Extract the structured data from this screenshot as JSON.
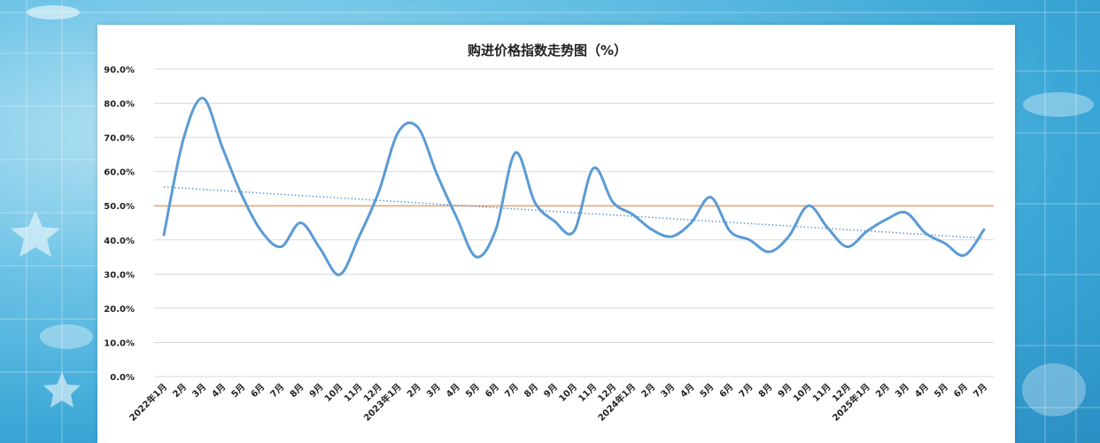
{
  "chart_data": {
    "type": "line",
    "title": "购进价格指数走势图（%）",
    "ylim": [
      0,
      90
    ],
    "yticks": [
      "0.0%",
      "10.0%",
      "20.0%",
      "30.0%",
      "40.0%",
      "50.0%",
      "60.0%",
      "70.0%",
      "80.0%",
      "90.0%"
    ],
    "grid": true,
    "categories": [
      "2022年1月",
      "2月",
      "3月",
      "4月",
      "5月",
      "6月",
      "7月",
      "8月",
      "9月",
      "10月",
      "11月",
      "12月",
      "2023年1月",
      "2月",
      "3月",
      "4月",
      "5月",
      "6月",
      "7月",
      "8月",
      "9月",
      "10月",
      "11月",
      "12月",
      "2024年1月",
      "2月",
      "3月",
      "4月",
      "5月",
      "6月",
      "7月",
      "8月",
      "9月",
      "10月",
      "11月",
      "12月",
      "2025年1月",
      "2月",
      "3月",
      "4月",
      "5月",
      "6月",
      "7月"
    ],
    "series": [
      {
        "name": "",
        "color": "#5b9bd5",
        "values": [
          41.5,
          69.5,
          81.5,
          67.0,
          53.0,
          42.5,
          38.0,
          45.0,
          37.5,
          29.8,
          41.0,
          54.0,
          71.5,
          73.0,
          59.0,
          46.5,
          35.0,
          43.0,
          65.5,
          51.0,
          45.5,
          42.5,
          61.0,
          51.0,
          47.5,
          43.0,
          41.0,
          45.0,
          52.5,
          42.5,
          40.0,
          36.5,
          41.0,
          50.0,
          43.5,
          38.0,
          42.5,
          46.0,
          48.0,
          42.0,
          39.0,
          35.5,
          43.0
        ]
      }
    ],
    "reference_line": {
      "value": 50,
      "color": "#ed7d31"
    },
    "trendline": {
      "start": 55.5,
      "end": 40.5,
      "color": "#5b9bd5"
    }
  }
}
